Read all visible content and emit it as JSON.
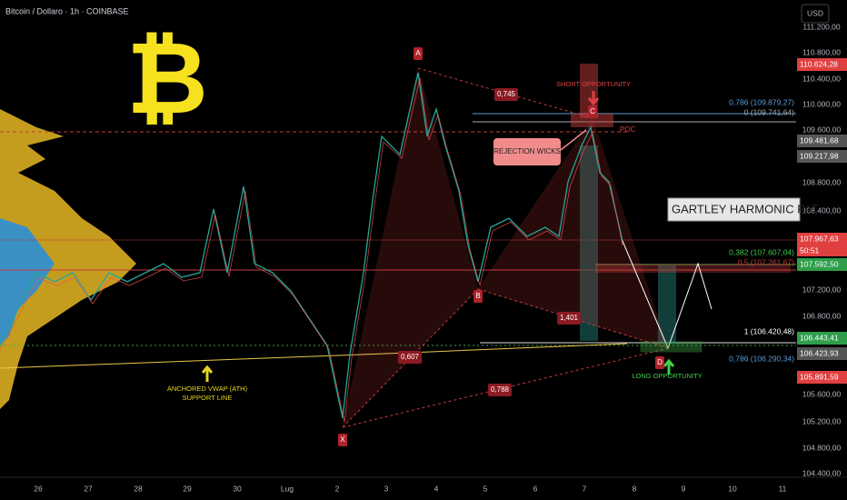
{
  "header": {
    "title": "Bitcoin / Dollaro · 1h · COINBASE",
    "currency": "USD",
    "symbol": "₿"
  },
  "price_axis": {
    "labels": [
      "111.200,00",
      "110.800,00",
      "110.400,00",
      "110.000,00",
      "109.600,00",
      "108.800,00",
      "108.400,00",
      "107.200,00",
      "106.800,00",
      "105.600,00",
      "105.200,00",
      "104.800,00",
      "104.400,00"
    ],
    "tags": [
      "110.624,28",
      "109.481,68",
      "109.217,98",
      "107.967,63",
      "50:51",
      "107.592,50",
      "106.443,41",
      "106.423,93",
      "105.891,59"
    ]
  },
  "time_axis": {
    "labels": [
      "26",
      "27",
      "28",
      "29",
      "30",
      "Lug",
      "2",
      "3",
      "4",
      "5",
      "6",
      "7",
      "8",
      "9",
      "10",
      "11"
    ]
  },
  "pattern": {
    "points": [
      "X",
      "A",
      "B",
      "C",
      "D"
    ],
    "ratios": [
      "0,745",
      "1,401",
      "0,607",
      "0,788"
    ]
  },
  "fib_levels": [
    "0,786 (109.879,27)",
    "0 (109.741,64)",
    "0,382 (107.607,04)",
    "0,5 (107.261,67)",
    "1 (106.420,48)",
    "0,786 (106.290,34)"
  ],
  "annotations": {
    "poc": "POC",
    "short": "SHORT OPPORTUNITY",
    "rejection": "REJECTION WICKS",
    "pattern_name": "GARTLEY HARMONIC PAT",
    "long": "LONG OPPORTUNITY",
    "vwap": [
      "ANCHORED VWAP (ATH)",
      "SUPPORT LINE"
    ]
  }
}
